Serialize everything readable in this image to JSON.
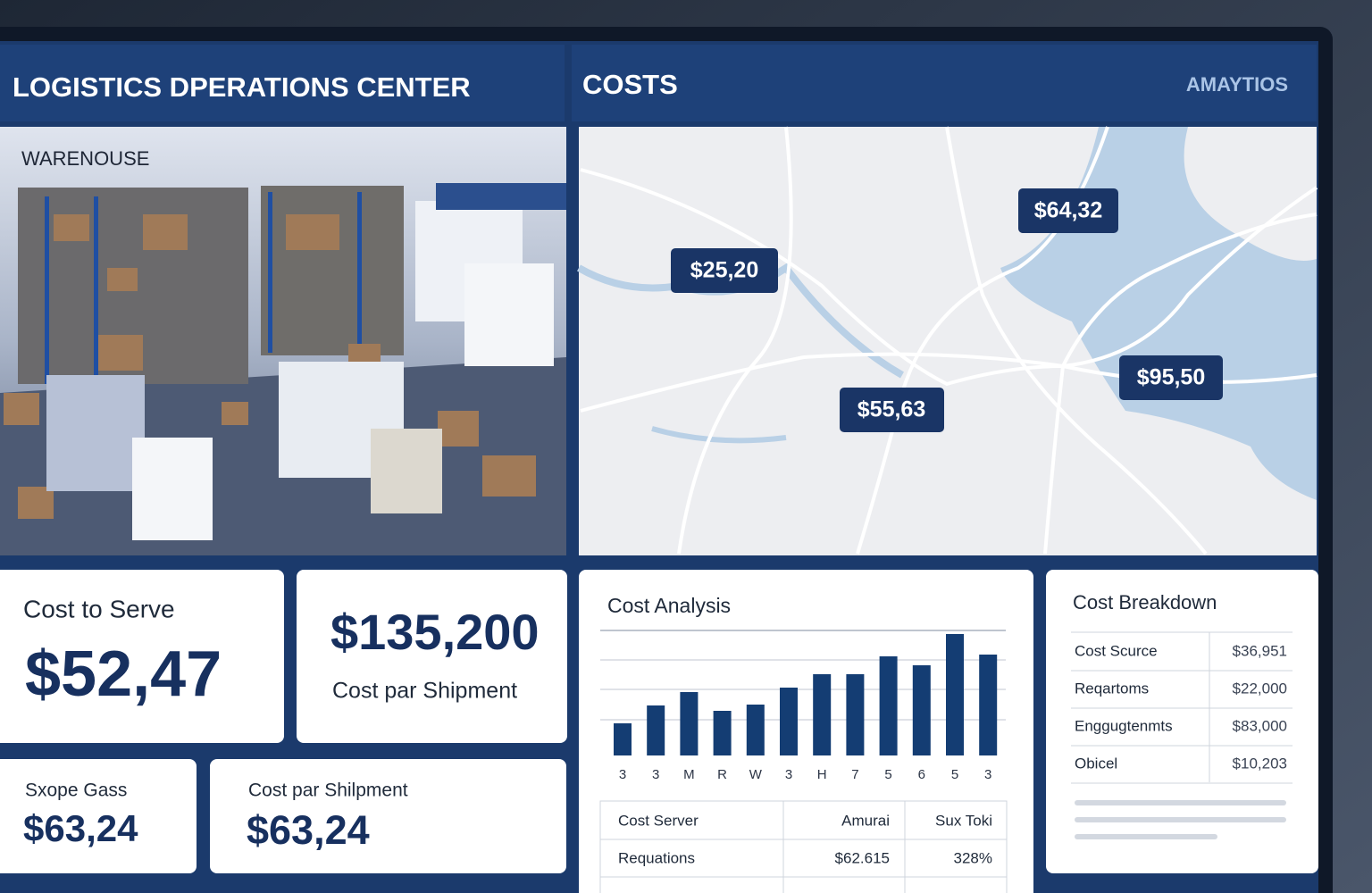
{
  "header": {
    "title": "LOGISTICS DPERATIONS CENTER",
    "section": "COSTS",
    "link": "AMAYTIOS"
  },
  "warehouse": {
    "label": "WARENOUSE"
  },
  "map": {
    "pins": [
      "$64,32",
      "$25,20",
      "$55,63",
      "$95,50"
    ]
  },
  "kpis": [
    {
      "label": "Cost to Serve",
      "value": "$52,47"
    },
    {
      "value": "$135,200",
      "label": "Cost par Shipment"
    },
    {
      "label": "Sxope Gass",
      "value": "$63,24"
    },
    {
      "label": "Cost par Shilpment",
      "value": "$63,24"
    }
  ],
  "cost_analysis": {
    "type": "bar",
    "title": "Cost Analysis",
    "categories": [
      "3",
      "3",
      "M",
      "R",
      "W",
      "3",
      "H",
      "7",
      "5",
      "6",
      "5",
      "3"
    ],
    "values": [
      36,
      56,
      71,
      50,
      57,
      76,
      91,
      91,
      111,
      101,
      136,
      113
    ],
    "color": "#143d73"
  },
  "cost_table": {
    "header": [
      "Cost Server",
      "Amurai",
      "Sux Toki"
    ],
    "rows": [
      [
        "Requations",
        "$62.615",
        "328%"
      ]
    ]
  },
  "cost_breakdown": {
    "title": "Cost Breakdown",
    "rows": [
      [
        "Cost Scurce",
        "$36,951"
      ],
      [
        "Reqartoms",
        "$22,000"
      ],
      [
        "Enggugtenmts",
        "$83,000"
      ],
      [
        "Obicel",
        "$10,203"
      ]
    ]
  }
}
